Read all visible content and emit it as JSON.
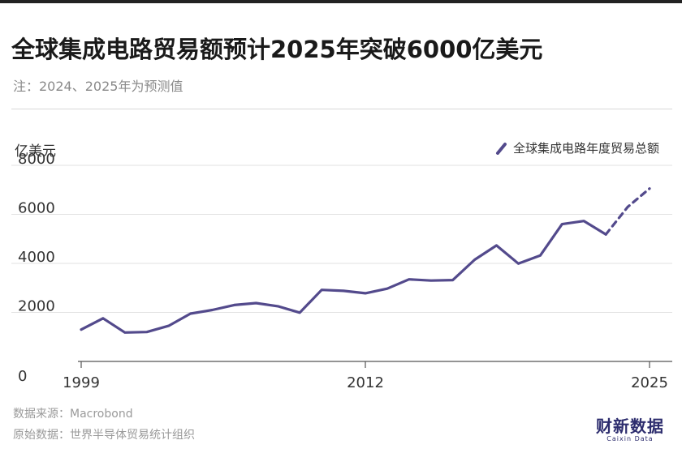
{
  "title": "全球集成电路贸易额预计2025年突破6000亿美元",
  "subtitle": "注：2024、2025年为预测值",
  "chart_data": {
    "type": "line",
    "title": "全球集成电路贸易额预计2025年突破6000亿美元",
    "subtitle": "注：2024、2025年为预测值",
    "ylabel": "亿美元",
    "xlabel": "",
    "ylim": [
      0,
      8000
    ],
    "xlim": [
      1999,
      2025
    ],
    "yticks": [
      0,
      2000,
      4000,
      6000,
      8000
    ],
    "xticks": [
      1999,
      2012,
      2025
    ],
    "grid": "horizontal",
    "legend_position": "top-right",
    "series": [
      {
        "name": "全球集成电路年度贸易总额",
        "color": "#534a8c",
        "x": [
          1999,
          2000,
          2001,
          2002,
          2003,
          2004,
          2005,
          2006,
          2007,
          2008,
          2009,
          2010,
          2011,
          2012,
          2013,
          2014,
          2015,
          2016,
          2017,
          2018,
          2019,
          2020,
          2021,
          2022,
          2023
        ],
        "values": [
          1300,
          1760,
          1180,
          1200,
          1450,
          1950,
          2100,
          2300,
          2380,
          2250,
          1990,
          2920,
          2880,
          2780,
          2970,
          3350,
          3300,
          3320,
          4150,
          4730,
          3990,
          4320,
          5600,
          5730,
          5180
        ],
        "projected_x": [
          2023,
          2024,
          2025
        ],
        "projected_values": [
          5180,
          6300,
          7050
        ]
      }
    ]
  },
  "source": "数据来源：Macrobond",
  "original_source": "原始数据：世界半导体贸易统计组织",
  "brand": {
    "name": "财新数据",
    "en": "Caixin Data"
  }
}
